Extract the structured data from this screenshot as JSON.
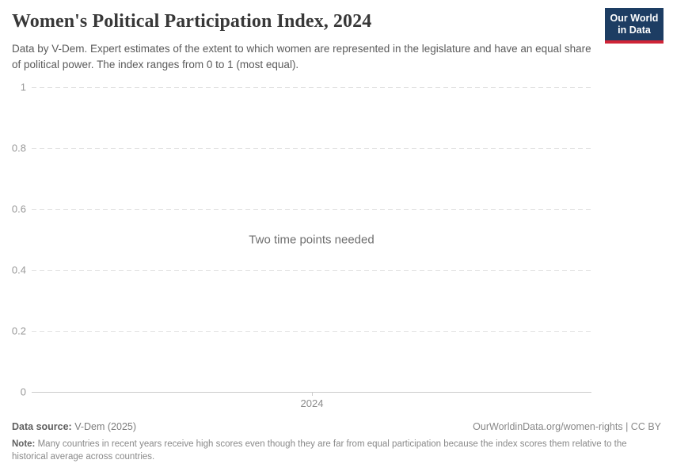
{
  "header": {
    "title": "Women's Political Participation Index, 2024",
    "subtitle": "Data by V-Dem. Expert estimates of the extent to which women are represented in the legislature and have an equal share of political power. The index ranges from 0 to 1 (most equal).",
    "logo": {
      "line1": "Our World",
      "line2": "in Data"
    }
  },
  "chart_data": {
    "type": "line",
    "title": "Women's Political Participation Index, 2024",
    "series": [],
    "x": [
      "2024"
    ],
    "x_tick_labels": [
      "2024"
    ],
    "y_ticks": [
      0,
      0.2,
      0.4,
      0.6,
      0.8,
      1
    ],
    "y_tick_labels": [
      "0",
      "0.2",
      "0.4",
      "0.6",
      "0.8",
      "1"
    ],
    "ylim": [
      0,
      1
    ],
    "grid": "horizontal dashed gridlines, solid baseline at 0",
    "legend": "none",
    "empty_message": "Two time points needed"
  },
  "footer": {
    "datasource_label": "Data source:",
    "datasource_value": "V-Dem (2025)",
    "rights": "OurWorldinData.org/women-rights | CC BY",
    "note_label": "Note:",
    "note_text": "Many countries in recent years receive high scores even though they are far from equal participation because the index scores them relative to the historical average across countries."
  },
  "colors": {
    "logo_bg": "#1d3d63",
    "logo_accent": "#cf2437",
    "gridline": "#e2e2e2",
    "axis_line": "#cbcbcb",
    "tick_label": "#999999",
    "title_text": "#383838",
    "subtitle_text": "#5b5b5b",
    "muted_text": "#898989"
  }
}
